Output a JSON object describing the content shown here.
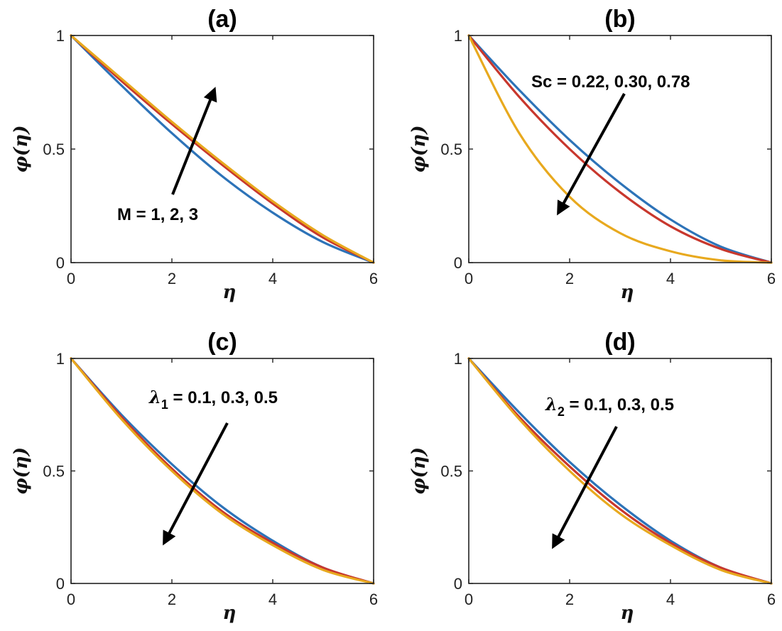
{
  "colors": {
    "series1": "#2d73b8",
    "series2": "#c8372d",
    "series3": "#e8a91e",
    "arrow": "#000000",
    "axis": "#222222"
  },
  "chart_data": [
    {
      "panel": "a",
      "type": "line",
      "title": "(a)",
      "xlabel": "η",
      "ylabel": "φ(η)",
      "xlim": [
        0,
        6
      ],
      "ylim": [
        0,
        1
      ],
      "xticks": [
        "0",
        "2",
        "4",
        "6"
      ],
      "yticks": [
        "0",
        "0.5",
        "1"
      ],
      "x": [
        0,
        1,
        2,
        3,
        4,
        5,
        6
      ],
      "series": [
        {
          "values": [
            1.0,
            0.78,
            0.57,
            0.38,
            0.22,
            0.09,
            0.0
          ]
        },
        {
          "values": [
            1.0,
            0.8,
            0.61,
            0.43,
            0.26,
            0.11,
            0.0
          ]
        },
        {
          "values": [
            1.0,
            0.81,
            0.62,
            0.44,
            0.27,
            0.12,
            0.0
          ]
        }
      ],
      "annotation": {
        "text": "M = 1, 2, 3",
        "sub": "",
        "rest": "",
        "direction": "up"
      }
    },
    {
      "panel": "b",
      "type": "line",
      "title": "(b)",
      "xlabel": "η",
      "ylabel": "φ(η)",
      "xlim": [
        0,
        6
      ],
      "ylim": [
        0,
        1
      ],
      "xticks": [
        "0",
        "2",
        "4",
        "6"
      ],
      "yticks": [
        "0",
        "0.5",
        "1"
      ],
      "x": [
        0,
        1,
        2,
        3,
        4,
        5,
        6
      ],
      "series": [
        {
          "values": [
            1.0,
            0.76,
            0.54,
            0.35,
            0.19,
            0.07,
            0.0
          ]
        },
        {
          "values": [
            1.0,
            0.73,
            0.5,
            0.31,
            0.16,
            0.06,
            0.0
          ]
        },
        {
          "values": [
            1.0,
            0.57,
            0.29,
            0.13,
            0.05,
            0.01,
            0.0
          ]
        }
      ],
      "annotation": {
        "text": "Sc = 0.22, 0.30, 0.78",
        "sub": "",
        "rest": "",
        "direction": "down"
      }
    },
    {
      "panel": "c",
      "type": "line",
      "title": "(c)",
      "xlabel": "η",
      "ylabel": "φ(η)",
      "xlim": [
        0,
        6
      ],
      "ylim": [
        0,
        1
      ],
      "xticks": [
        "0",
        "2",
        "4",
        "6"
      ],
      "yticks": [
        "0",
        "0.5",
        "1"
      ],
      "x": [
        0,
        1,
        2,
        3,
        4,
        5,
        6
      ],
      "series": [
        {
          "values": [
            1.0,
            0.75,
            0.53,
            0.34,
            0.19,
            0.07,
            0.0
          ]
        },
        {
          "values": [
            1.0,
            0.74,
            0.51,
            0.32,
            0.18,
            0.07,
            0.0
          ]
        },
        {
          "values": [
            1.0,
            0.73,
            0.5,
            0.31,
            0.17,
            0.06,
            0.0
          ]
        }
      ],
      "annotation": {
        "text": "λ",
        "sub": "1",
        "rest": " = 0.1, 0.3, 0.5",
        "direction": "down"
      }
    },
    {
      "panel": "d",
      "type": "line",
      "title": "(d)",
      "xlabel": "η",
      "ylabel": "φ(η)",
      "xlim": [
        0,
        6
      ],
      "ylim": [
        0,
        1
      ],
      "xticks": [
        "0",
        "2",
        "4",
        "6"
      ],
      "yticks": [
        "0",
        "0.5",
        "1"
      ],
      "x": [
        0,
        1,
        2,
        3,
        4,
        5,
        6
      ],
      "series": [
        {
          "values": [
            1.0,
            0.76,
            0.54,
            0.35,
            0.19,
            0.07,
            0.0
          ]
        },
        {
          "values": [
            1.0,
            0.74,
            0.52,
            0.33,
            0.18,
            0.07,
            0.0
          ]
        },
        {
          "values": [
            1.0,
            0.73,
            0.5,
            0.31,
            0.17,
            0.06,
            0.0
          ]
        }
      ],
      "annotation": {
        "text": "λ",
        "sub": "2",
        "rest": " = 0.1, 0.3, 0.5",
        "direction": "down"
      }
    }
  ]
}
